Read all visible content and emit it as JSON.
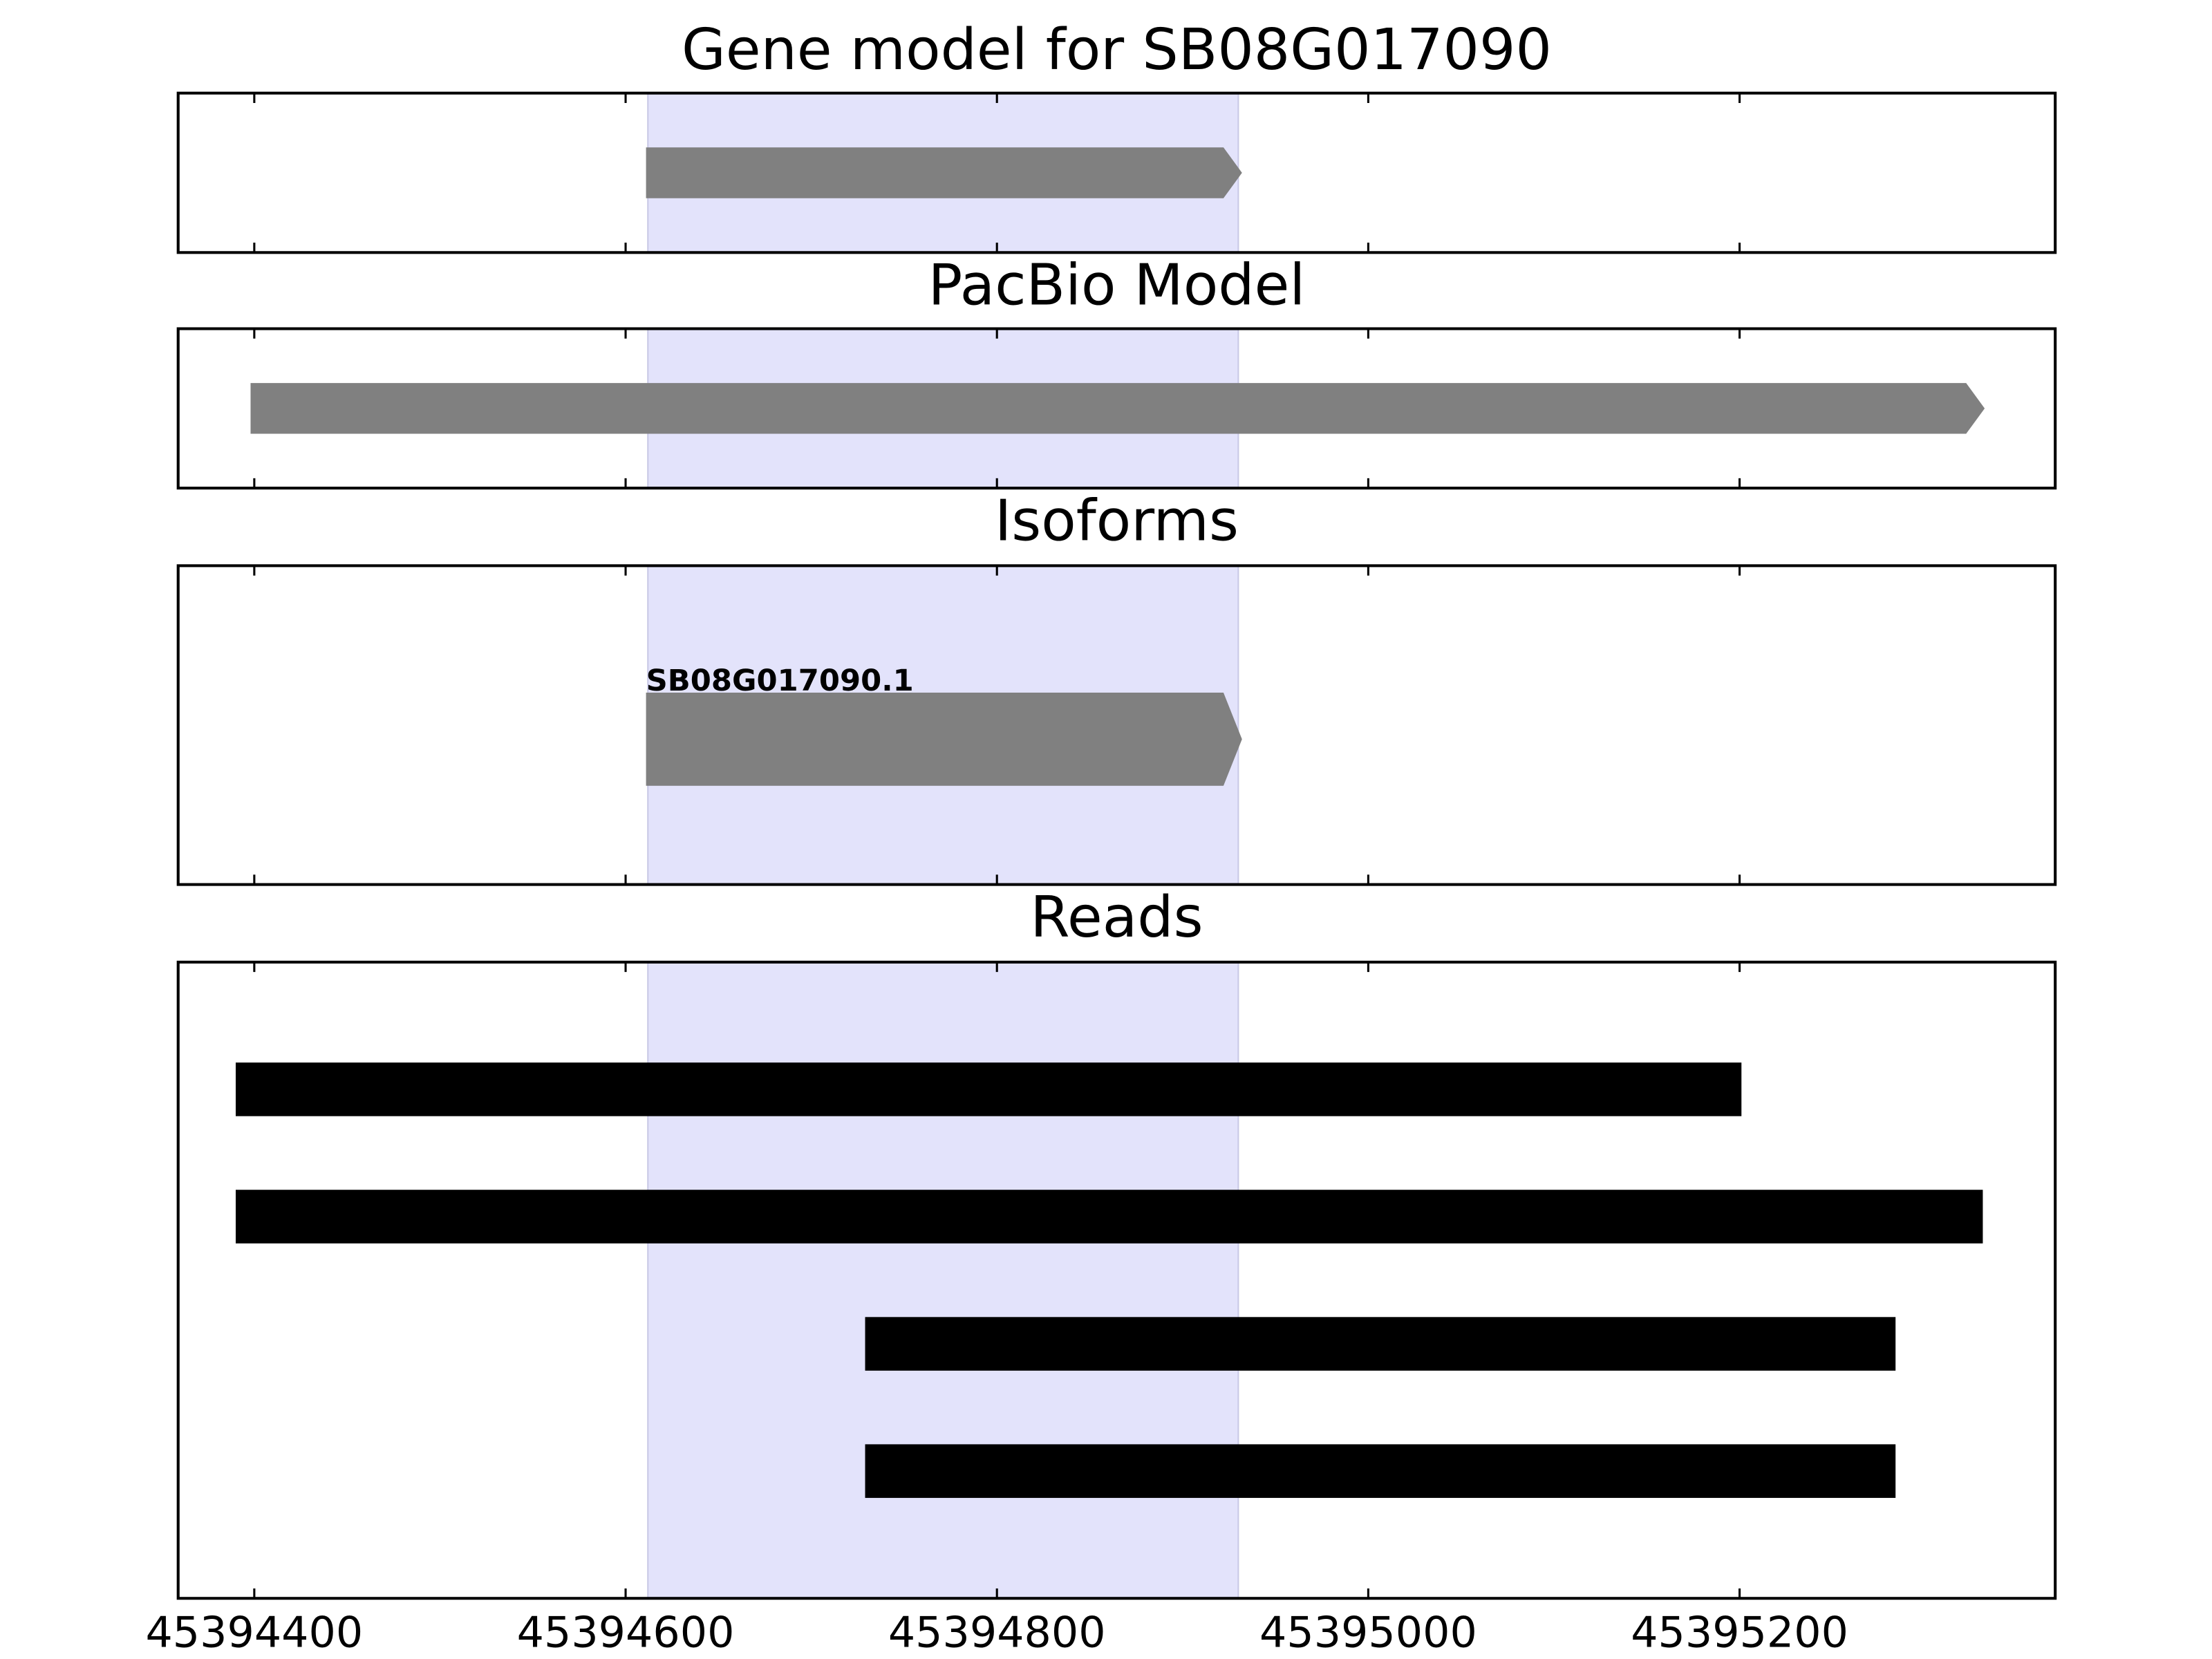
{
  "chart_data": [
    {
      "type": "gene",
      "title": "Gene model for SB08G017090",
      "xlim": [
        45394359,
        45395370
      ],
      "xticks": [
        45394400,
        45394600,
        45394800,
        45395000,
        45395200
      ],
      "highlight": [
        45394612,
        45394930
      ],
      "highlight_color": "#e3e3fb",
      "color": "#808080",
      "features": [
        {
          "start": 45394611,
          "end": 45394932
        }
      ]
    },
    {
      "type": "gene",
      "title": "PacBio Model",
      "xlim": [
        45394359,
        45395370
      ],
      "xticks": [
        45394400,
        45394600,
        45394800,
        45395000,
        45395200
      ],
      "highlight": [
        45394612,
        45394930
      ],
      "highlight_color": "#e3e3fb",
      "color": "#808080",
      "features": [
        {
          "start": 45394398,
          "end": 45395332
        }
      ]
    },
    {
      "type": "isoform",
      "title": "Isoforms",
      "xlim": [
        45394359,
        45395370
      ],
      "xticks": [
        45394400,
        45394600,
        45394800,
        45395000,
        45395200
      ],
      "highlight": [
        45394612,
        45394930
      ],
      "highlight_color": "#e3e3fb",
      "color": "#808080",
      "features": [
        {
          "name": "SB08G017090.1",
          "start": 45394611,
          "end": 45394932
        }
      ]
    },
    {
      "type": "reads",
      "title": "Reads",
      "xlim": [
        45394359,
        45395370
      ],
      "xticks": [
        45394400,
        45394600,
        45394800,
        45395000,
        45395200
      ],
      "highlight": [
        45394612,
        45394930
      ],
      "highlight_color": "#e3e3fb",
      "color": "#000000",
      "features": [
        {
          "start": 45394390,
          "end": 45395201
        },
        {
          "start": 45394390,
          "end": 45395331
        },
        {
          "start": 45394729,
          "end": 45395284
        },
        {
          "start": 45394729,
          "end": 45395284
        }
      ]
    }
  ]
}
